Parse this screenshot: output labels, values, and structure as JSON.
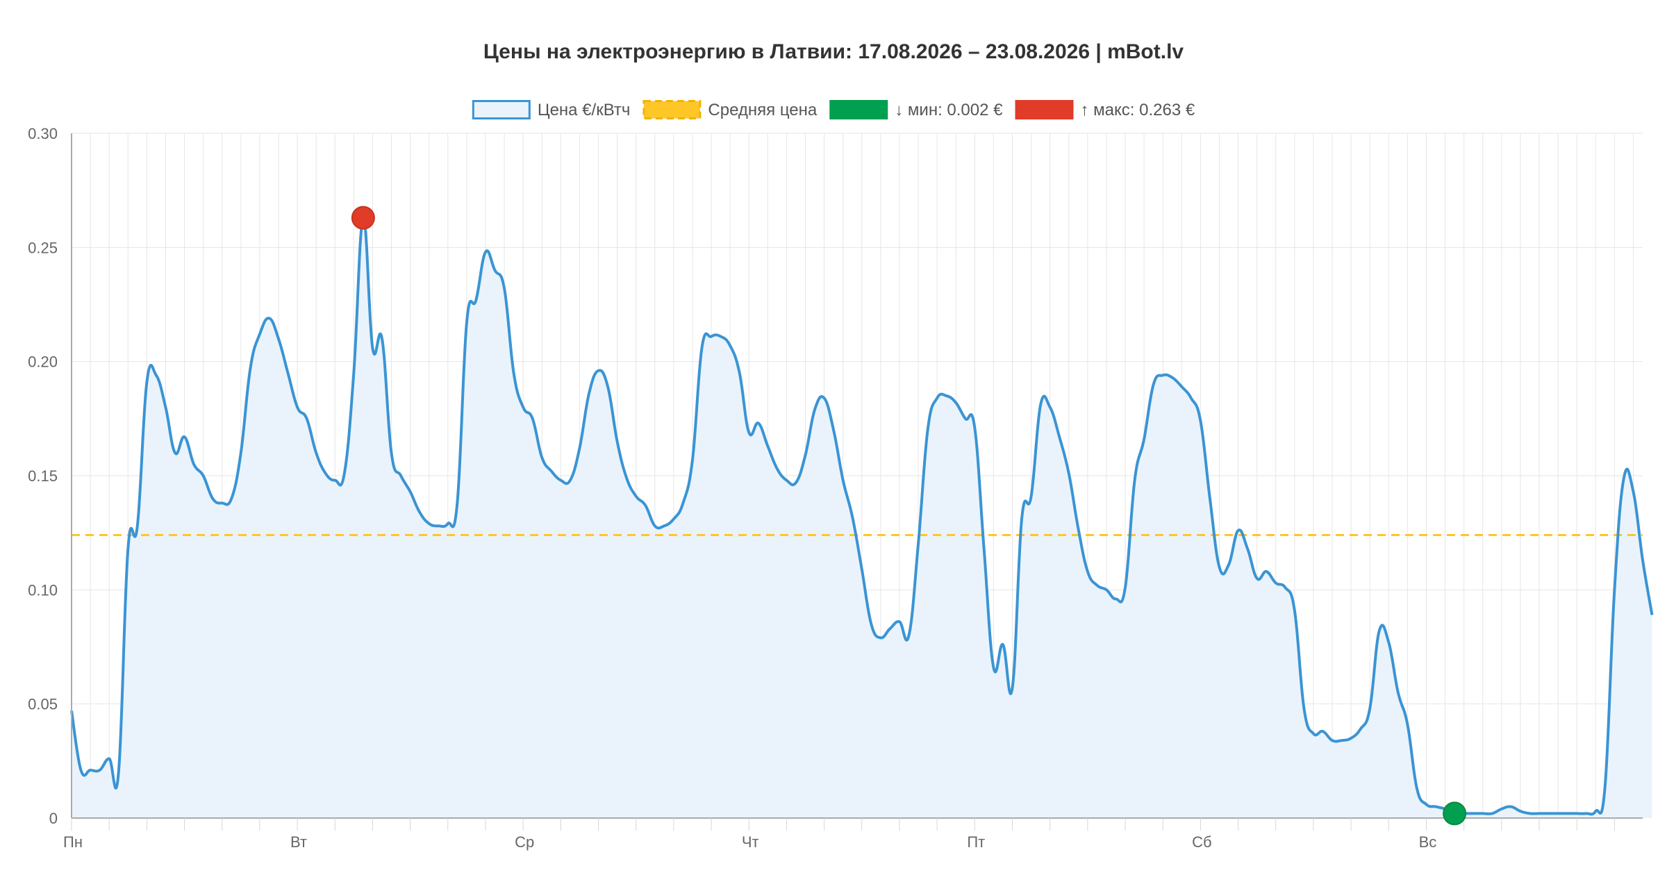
{
  "chart_data": {
    "type": "line",
    "title": "Цены на электроэнергию в Латвии: 17.08.2026 – 23.08.2026 | mBot.lv",
    "xlabel": "",
    "ylabel": "",
    "ylim": [
      0,
      0.3
    ],
    "y_ticks": [
      {
        "value": 0,
        "label": "0"
      },
      {
        "value": 0.05,
        "label": "0.05"
      },
      {
        "value": 0.1,
        "label": "0.10"
      },
      {
        "value": 0.15,
        "label": "0.15"
      },
      {
        "value": 0.2,
        "label": "0.20"
      },
      {
        "value": 0.25,
        "label": "0.25"
      },
      {
        "value": 0.3,
        "label": "0.30"
      }
    ],
    "x_range": [
      0,
      167
    ],
    "x_ticks": [
      {
        "hour": 0,
        "label": "Пн"
      },
      {
        "hour": 24,
        "label": "Вт"
      },
      {
        "hour": 48,
        "label": "Ср"
      },
      {
        "hour": 72,
        "label": "Чт"
      },
      {
        "hour": 96,
        "label": "Пт"
      },
      {
        "hour": 120,
        "label": "Сб"
      },
      {
        "hour": 144,
        "label": "Вс"
      }
    ],
    "grid": true,
    "legend_position": "top",
    "legend": [
      {
        "key": "price",
        "label": "Цена €/кВтч",
        "color": "#3a94d4"
      },
      {
        "key": "avg",
        "label": "Средняя цена",
        "color": "#ffc627"
      },
      {
        "key": "min",
        "label": "↓ мин: 0.002 €",
        "color": "#00a050"
      },
      {
        "key": "max",
        "label": "↑ макс: 0.263 €",
        "color": "#e03c28"
      }
    ],
    "series": [
      {
        "name": "Цена €/кВтч",
        "color": "#3a94d4",
        "values": [
          0.047,
          0.021,
          0.021,
          0.021,
          0.026,
          0.02,
          0.118,
          0.128,
          0.191,
          0.194,
          0.18,
          0.16,
          0.167,
          0.155,
          0.15,
          0.14,
          0.138,
          0.14,
          0.16,
          0.197,
          0.212,
          0.219,
          0.21,
          0.195,
          0.18,
          0.175,
          0.16,
          0.151,
          0.148,
          0.151,
          0.195,
          0.263,
          0.206,
          0.21,
          0.16,
          0.15,
          0.143,
          0.134,
          0.129,
          0.128,
          0.129,
          0.138,
          0.217,
          0.227,
          0.248,
          0.24,
          0.232,
          0.195,
          0.18,
          0.175,
          0.158,
          0.152,
          0.148,
          0.148,
          0.162,
          0.186,
          0.196,
          0.189,
          0.165,
          0.149,
          0.141,
          0.137,
          0.128,
          0.128,
          0.131,
          0.138,
          0.157,
          0.206,
          0.211,
          0.211,
          0.207,
          0.195,
          0.169,
          0.173,
          0.163,
          0.153,
          0.148,
          0.147,
          0.159,
          0.179,
          0.184,
          0.17,
          0.148,
          0.132,
          0.109,
          0.085,
          0.079,
          0.083,
          0.086,
          0.08,
          0.12,
          0.17,
          0.184,
          0.185,
          0.182,
          0.175,
          0.171,
          0.117,
          0.066,
          0.076,
          0.057,
          0.131,
          0.141,
          0.181,
          0.18,
          0.167,
          0.151,
          0.127,
          0.108,
          0.102,
          0.1,
          0.096,
          0.101,
          0.148,
          0.166,
          0.19,
          0.194,
          0.193,
          0.189,
          0.184,
          0.174,
          0.14,
          0.11,
          0.111,
          0.126,
          0.118,
          0.105,
          0.108,
          0.103,
          0.101,
          0.091,
          0.048,
          0.037,
          0.038,
          0.034,
          0.034,
          0.035,
          0.039,
          0.048,
          0.082,
          0.077,
          0.055,
          0.041,
          0.013,
          0.006,
          0.005,
          0.004,
          0.002,
          0.002,
          0.002,
          0.002,
          0.002,
          0.004,
          0.005,
          0.003,
          0.002,
          0.002,
          0.002,
          0.002,
          0.002,
          0.002,
          0.002,
          0.003,
          0.014,
          0.1,
          0.149,
          0.143,
          0.113,
          0.089
        ]
      }
    ],
    "average": 0.124,
    "min_point": {
      "hour": 147,
      "value": 0.002,
      "color": "#00a050"
    },
    "max_point": {
      "hour": 31,
      "value": 0.263,
      "color": "#e03c28"
    },
    "colors": {
      "line": "#3a94d4",
      "fill": "#eaf3fb",
      "average": "#ffc627",
      "grid": "#e6e6e6",
      "axis": "#aaaaaa"
    }
  }
}
